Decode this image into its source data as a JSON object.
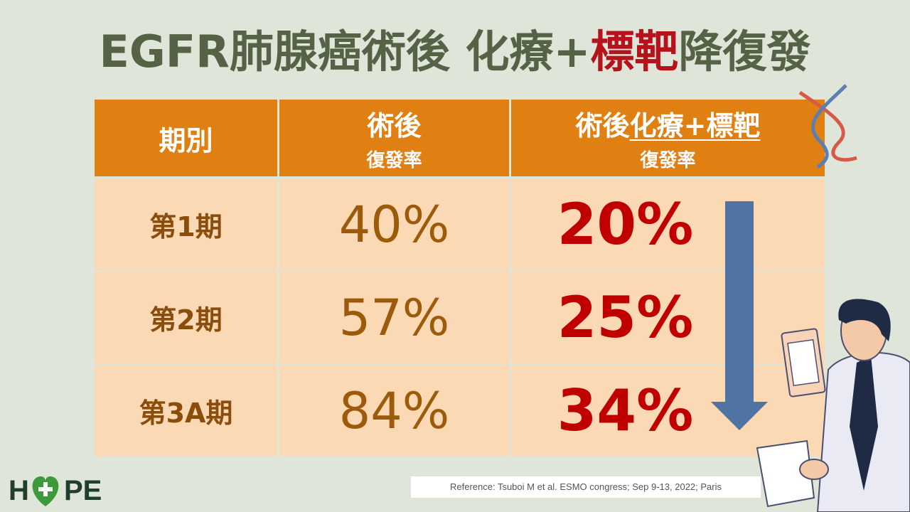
{
  "title": {
    "parts": [
      "EGFR肺腺癌術後 化療+",
      "標靶",
      "降復發"
    ]
  },
  "table": {
    "header": [
      {
        "main": "期別"
      },
      {
        "main": "術後",
        "sub": "復發率"
      },
      {
        "main": "術後",
        "main_underlined": "化療+標靶",
        "sub": "復發率"
      }
    ],
    "rows": [
      [
        "第1期",
        "40%",
        "20%"
      ],
      [
        "第2期",
        "57%",
        "25%"
      ],
      [
        "第3A期",
        "84%",
        "34%"
      ]
    ]
  },
  "reference": "Reference: Tsuboi M et al. ESMO congress; Sep 9-13, 2022; Paris",
  "logo": {
    "left": "H",
    "right": "PE"
  }
}
